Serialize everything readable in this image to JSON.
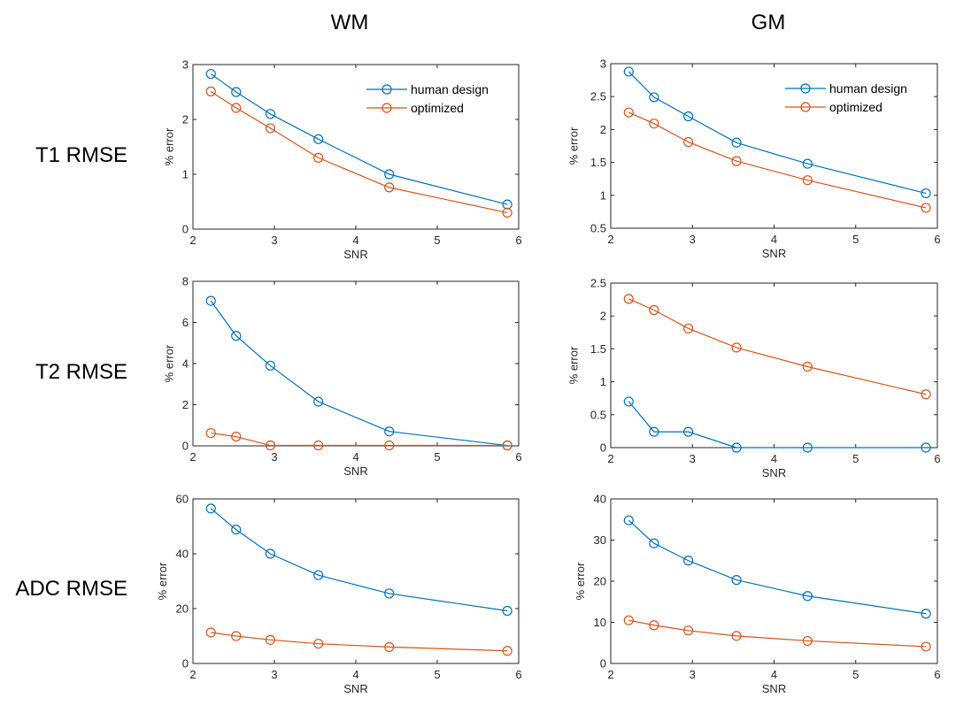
{
  "figure": {
    "column_titles": [
      "WM",
      "GM"
    ],
    "row_titles": [
      "T1 RMSE",
      "T2 RMSE",
      "ADC RMSE"
    ],
    "colors": {
      "human": "#0072BD",
      "optimized": "#D95319",
      "axis": "#262626"
    }
  },
  "chart_data": [
    {
      "id": "t1-wm",
      "type": "line",
      "title": "",
      "xlabel": "SNR",
      "ylabel": "% error",
      "xlim": [
        2,
        6
      ],
      "ylim": [
        0,
        3
      ],
      "xticks": [
        2,
        3,
        4,
        5,
        6
      ],
      "xtick_labels": [
        "2",
        "3",
        "4",
        "5",
        "6"
      ],
      "yticks": [
        0,
        1,
        2,
        3
      ],
      "ytick_labels": [
        "0",
        "1",
        "2",
        "3"
      ],
      "legend": true,
      "legend_position": "top-right",
      "x": [
        2.22,
        2.53,
        2.95,
        3.54,
        4.41,
        5.86
      ],
      "series": [
        {
          "name": "human design",
          "color": "#0072BD",
          "values": [
            2.83,
            2.5,
            2.1,
            1.64,
            1.0,
            0.45
          ]
        },
        {
          "name": "optimized",
          "color": "#D95319",
          "values": [
            2.51,
            2.21,
            1.84,
            1.3,
            0.76,
            0.3
          ]
        }
      ]
    },
    {
      "id": "t1-gm",
      "type": "line",
      "title": "",
      "xlabel": "SNR",
      "ylabel": "% error",
      "xlim": [
        2,
        6
      ],
      "ylim": [
        0.5,
        3
      ],
      "xticks": [
        2,
        3,
        4,
        5,
        6
      ],
      "xtick_labels": [
        "2",
        "3",
        "4",
        "5",
        "6"
      ],
      "yticks": [
        0.5,
        1,
        1.5,
        2,
        2.5,
        3
      ],
      "ytick_labels": [
        "0.5",
        "1",
        "1.5",
        "2",
        "2.5",
        "3"
      ],
      "legend": true,
      "legend_position": "top-right",
      "x": [
        2.22,
        2.53,
        2.95,
        3.54,
        4.41,
        5.86
      ],
      "series": [
        {
          "name": "human design",
          "color": "#0072BD",
          "values": [
            2.88,
            2.49,
            2.2,
            1.8,
            1.48,
            1.03
          ]
        },
        {
          "name": "optimized",
          "color": "#D95319",
          "values": [
            2.26,
            2.09,
            1.81,
            1.52,
            1.23,
            0.81
          ]
        }
      ]
    },
    {
      "id": "t2-wm",
      "type": "line",
      "title": "",
      "xlabel": "SNR",
      "ylabel": "% error",
      "xlim": [
        2,
        6
      ],
      "ylim": [
        0,
        8
      ],
      "xticks": [
        2,
        3,
        4,
        5,
        6
      ],
      "xtick_labels": [
        "2",
        "3",
        "4",
        "5",
        "6"
      ],
      "yticks": [
        0,
        2,
        4,
        6,
        8
      ],
      "ytick_labels": [
        "0",
        "2",
        "4",
        "6",
        "8"
      ],
      "legend": false,
      "x": [
        2.22,
        2.53,
        2.95,
        3.54,
        4.41,
        5.86
      ],
      "series": [
        {
          "name": "human design",
          "color": "#0072BD",
          "values": [
            7.05,
            5.35,
            3.9,
            2.15,
            0.7,
            0.02
          ]
        },
        {
          "name": "optimized",
          "color": "#D95319",
          "values": [
            0.62,
            0.45,
            0.02,
            0.02,
            0.02,
            0.02
          ]
        }
      ]
    },
    {
      "id": "t2-gm",
      "type": "line",
      "title": "",
      "xlabel": "SNR",
      "ylabel": "% error",
      "xlim": [
        2,
        6
      ],
      "ylim": [
        0,
        2.5
      ],
      "xticks": [
        2,
        3,
        4,
        5,
        6
      ],
      "xtick_labels": [
        "2",
        "3",
        "4",
        "5",
        "6"
      ],
      "yticks": [
        0,
        0.5,
        1,
        1.5,
        2,
        2.5
      ],
      "ytick_labels": [
        "0",
        "0.5",
        "1",
        "1.5",
        "2",
        "2.5"
      ],
      "legend": false,
      "x": [
        2.22,
        2.53,
        2.95,
        3.54,
        4.41,
        5.86
      ],
      "series": [
        {
          "name": "human design",
          "color": "#0072BD",
          "values": [
            0.7,
            0.24,
            0.24,
            0.0,
            0.0,
            0.0
          ]
        },
        {
          "name": "optimized",
          "color": "#D95319",
          "values": [
            2.26,
            2.09,
            1.81,
            1.52,
            1.23,
            0.81
          ]
        }
      ]
    },
    {
      "id": "adc-wm",
      "type": "line",
      "title": "",
      "xlabel": "SNR",
      "ylabel": "% error",
      "xlim": [
        2,
        6
      ],
      "ylim": [
        0,
        60
      ],
      "xticks": [
        2,
        3,
        4,
        5,
        6
      ],
      "xtick_labels": [
        "2",
        "3",
        "4",
        "5",
        "6"
      ],
      "yticks": [
        0,
        20,
        40,
        60
      ],
      "ytick_labels": [
        "0",
        "20",
        "40",
        "60"
      ],
      "legend": false,
      "x": [
        2.22,
        2.53,
        2.95,
        3.54,
        4.41,
        5.86
      ],
      "series": [
        {
          "name": "human design",
          "color": "#0072BD",
          "values": [
            56.5,
            48.8,
            40.0,
            32.2,
            25.5,
            19.2
          ]
        },
        {
          "name": "optimized",
          "color": "#D95319",
          "values": [
            11.3,
            10.0,
            8.6,
            7.2,
            6.0,
            4.6
          ]
        }
      ]
    },
    {
      "id": "adc-gm",
      "type": "line",
      "title": "",
      "xlabel": "SNR",
      "ylabel": "% error",
      "xlim": [
        2,
        6
      ],
      "ylim": [
        0,
        40
      ],
      "xticks": [
        2,
        3,
        4,
        5,
        6
      ],
      "xtick_labels": [
        "2",
        "3",
        "4",
        "5",
        "6"
      ],
      "yticks": [
        0,
        10,
        20,
        30,
        40
      ],
      "ytick_labels": [
        "0",
        "10",
        "20",
        "30",
        "40"
      ],
      "legend": false,
      "x": [
        2.22,
        2.53,
        2.95,
        3.54,
        4.41,
        5.86
      ],
      "series": [
        {
          "name": "human design",
          "color": "#0072BD",
          "values": [
            34.8,
            29.2,
            25.0,
            20.3,
            16.4,
            12.1
          ]
        },
        {
          "name": "optimized",
          "color": "#D95319",
          "values": [
            10.5,
            9.3,
            8.0,
            6.7,
            5.5,
            4.1
          ]
        }
      ]
    }
  ]
}
